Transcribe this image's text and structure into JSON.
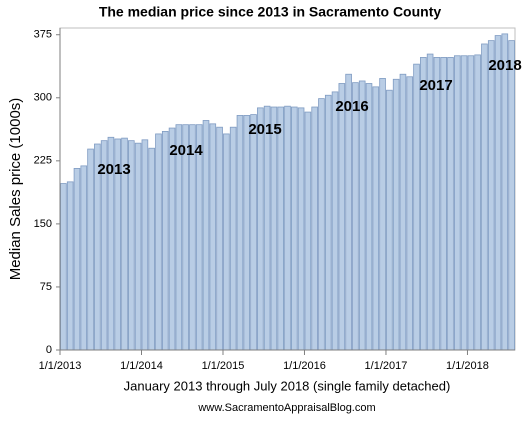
{
  "chart_data": {
    "type": "bar",
    "title": "The median price since 2013 in Sacramento County",
    "y_label": "Median Sales price (1000s)",
    "x_label": "January 2013 through July 2018 (single family detached)",
    "source": "www.SacramentoAppraisalBlog.com",
    "categories": [
      "1/1/2013",
      null,
      null,
      null,
      null,
      null,
      null,
      null,
      null,
      null,
      null,
      null,
      "1/1/2014",
      null,
      null,
      null,
      null,
      null,
      null,
      null,
      null,
      null,
      null,
      null,
      "1/1/2015",
      null,
      null,
      null,
      null,
      null,
      null,
      null,
      null,
      null,
      null,
      null,
      "1/1/2016",
      null,
      null,
      null,
      null,
      null,
      null,
      null,
      null,
      null,
      null,
      null,
      "1/1/2017",
      null,
      null,
      null,
      null,
      null,
      null,
      null,
      null,
      null,
      null,
      null,
      "1/1/2018",
      null,
      null,
      null,
      null,
      null,
      null
    ],
    "values": [
      198,
      200,
      216,
      219,
      239,
      245,
      249,
      253,
      251,
      252,
      249,
      246,
      250,
      240,
      257,
      260,
      264,
      268,
      268,
      268,
      268,
      273,
      269,
      265,
      257,
      265,
      279,
      279,
      280,
      288,
      290,
      289,
      289,
      290,
      289,
      288,
      283,
      289,
      299,
      303,
      307,
      317,
      328,
      318,
      320,
      317,
      313,
      323,
      309,
      322,
      328,
      325,
      340,
      348,
      352,
      348,
      348,
      348,
      350,
      350,
      350,
      351,
      364,
      368,
      374,
      376,
      368
    ],
    "color": "#b9cde5",
    "edge_color": "#7f9bc2",
    "annotations": [
      "2013",
      "2014",
      "2015",
      "2016",
      "2017",
      "2018"
    ],
    "ylim": [
      0,
      383
    ],
    "yticks": [
      0,
      75,
      150,
      225,
      300,
      375
    ]
  }
}
